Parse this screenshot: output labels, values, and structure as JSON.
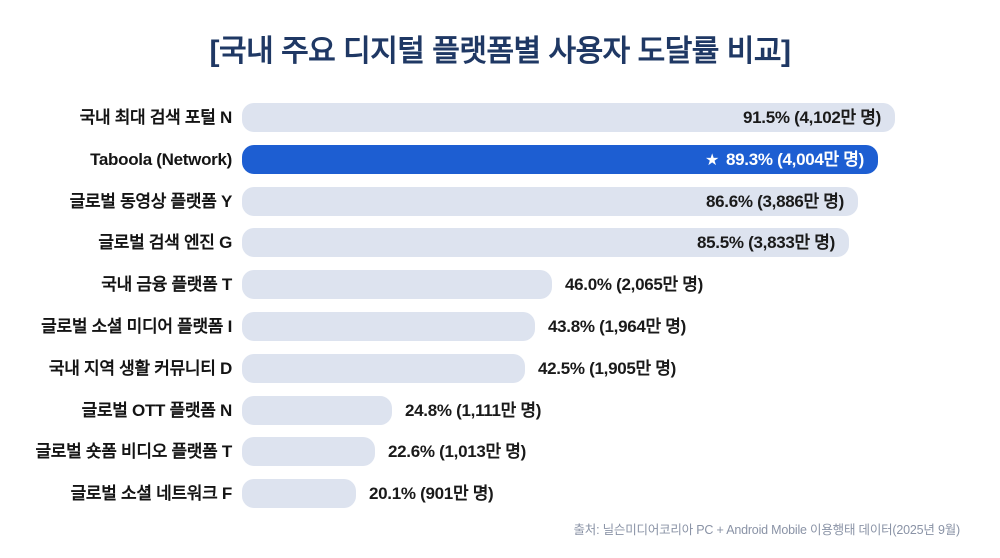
{
  "header": {
    "title": "[국내 주요 디지털 플랫폼별 사용자 도달률 비교]"
  },
  "footer": {
    "source": "출처: 닐슨미디어코리아 PC + Android Mobile 이용행태 데이터(2025년 9월)"
  },
  "icons": {
    "star": "★"
  },
  "colors": {
    "title": "#1f3864",
    "bar_default": "#dde3ef",
    "bar_highlight": "#1d5ed2",
    "value_text": "#1a1a1a",
    "value_text_on_highlight": "#ffffff",
    "source_text": "#8a93a6",
    "background": "#ffffff"
  },
  "chart_data": {
    "type": "bar",
    "orientation": "horizontal",
    "title": "[국내 주요 디지털 플랫폼별 사용자 도달률 비교]",
    "xlabel": "",
    "ylabel": "",
    "xlim": [
      0,
      100
    ],
    "unit": "%",
    "grid": false,
    "legend": false,
    "categories": [
      "국내 최대 검색 포털 N",
      "Taboola (Network)",
      "글로벌 동영상 플랫폼 Y",
      "글로벌 검색 엔진 G",
      "국내 금융 플랫폼 T",
      "글로벌 소셜 미디어 플랫폼 I",
      "국내 지역 생활 커뮤니티 D",
      "글로벌 OTT 플랫폼 N",
      "글로벌 숏폼 비디오 플랫폼 T",
      "글로벌 소셜 네트워크 F"
    ],
    "values": [
      91.5,
      89.3,
      86.6,
      85.5,
      46.0,
      43.8,
      42.5,
      24.8,
      22.6,
      20.1
    ],
    "rows": [
      {
        "label": "국내 최대 검색 포털 N",
        "reach_pct": 91.5,
        "reach_users": "4,102만 명",
        "value_label": "91.5% (4,102만 명)",
        "highlight": false,
        "star": false,
        "value_inside": true
      },
      {
        "label": "Taboola (Network)",
        "reach_pct": 89.3,
        "reach_users": "4,004만 명",
        "value_label": "89.3% (4,004만 명)",
        "highlight": true,
        "star": true,
        "value_inside": true
      },
      {
        "label": "글로벌 동영상 플랫폼 Y",
        "reach_pct": 86.6,
        "reach_users": "3,886만 명",
        "value_label": "86.6% (3,886만 명)",
        "highlight": false,
        "star": false,
        "value_inside": true
      },
      {
        "label": "글로벌 검색 엔진 G",
        "reach_pct": 85.5,
        "reach_users": "3,833만 명",
        "value_label": "85.5% (3,833만 명)",
        "highlight": false,
        "star": false,
        "value_inside": true
      },
      {
        "label": "국내 금융 플랫폼 T",
        "reach_pct": 46.0,
        "reach_users": "2,065만 명",
        "value_label": "46.0% (2,065만 명)",
        "highlight": false,
        "star": false,
        "value_inside": false
      },
      {
        "label": "글로벌 소셜 미디어 플랫폼 I",
        "reach_pct": 43.8,
        "reach_users": "1,964만 명",
        "value_label": "43.8% (1,964만 명)",
        "highlight": false,
        "star": false,
        "value_inside": false
      },
      {
        "label": "국내 지역 생활 커뮤니티 D",
        "reach_pct": 42.5,
        "reach_users": "1,905만 명",
        "value_label": "42.5% (1,905만 명)",
        "highlight": false,
        "star": false,
        "value_inside": false
      },
      {
        "label": "글로벌 OTT 플랫폼 N",
        "reach_pct": 24.8,
        "reach_users": "1,111만 명",
        "value_label": "24.8% (1,111만 명)",
        "highlight": false,
        "star": false,
        "value_inside": false
      },
      {
        "label": "글로벌 숏폼 비디오 플랫폼 T",
        "reach_pct": 22.6,
        "reach_users": "1,013만 명",
        "value_label": "22.6% (1,013만 명)",
        "highlight": false,
        "star": false,
        "value_inside": false
      },
      {
        "label": "글로벌 소셜 네트워크 F",
        "reach_pct": 20.1,
        "reach_users": "901만 명",
        "value_label": "20.1% (901만 명)",
        "highlight": false,
        "star": false,
        "value_inside": false
      }
    ]
  }
}
